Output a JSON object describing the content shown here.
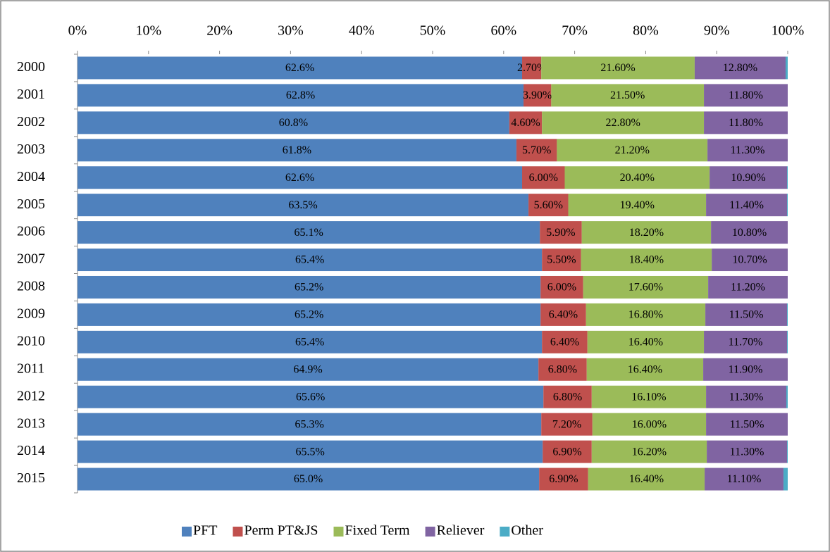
{
  "chart_data": {
    "type": "stacked-bar-horizontal",
    "categories": [
      "2000",
      "2001",
      "2002",
      "2003",
      "2004",
      "2005",
      "2006",
      "2007",
      "2008",
      "2009",
      "2010",
      "2011",
      "2012",
      "2013",
      "2014",
      "2015"
    ],
    "xlim": [
      0,
      100
    ],
    "xticks": [
      {
        "value": 0,
        "label": "0%"
      },
      {
        "value": 10,
        "label": "10%"
      },
      {
        "value": 20,
        "label": "20%"
      },
      {
        "value": 30,
        "label": "30%"
      },
      {
        "value": 40,
        "label": "40%"
      },
      {
        "value": 50,
        "label": "50%"
      },
      {
        "value": 60,
        "label": "60%"
      },
      {
        "value": 70,
        "label": "70%"
      },
      {
        "value": 80,
        "label": "80%"
      },
      {
        "value": 90,
        "label": "90%"
      },
      {
        "value": 100,
        "label": "100%"
      }
    ],
    "legend": "bottom",
    "series": [
      {
        "name": "PFT",
        "color": "#4f81bd",
        "values": [
          62.6,
          62.8,
          60.8,
          61.8,
          62.6,
          63.5,
          65.1,
          65.4,
          65.2,
          65.2,
          65.4,
          64.9,
          65.6,
          65.3,
          65.5,
          65.0
        ],
        "value_labels": [
          "62.6%",
          "62.8%",
          "60.8%",
          "61.8%",
          "62.6%",
          "63.5%",
          "65.1%",
          "65.4%",
          "65.2%",
          "65.2%",
          "65.4%",
          "64.9%",
          "65.6%",
          "65.3%",
          "65.5%",
          "65.0%"
        ]
      },
      {
        "name": "Perm PT&JS",
        "color": "#c0504d",
        "values": [
          2.7,
          3.9,
          4.6,
          5.7,
          6.0,
          5.6,
          5.9,
          5.5,
          6.0,
          6.4,
          6.4,
          6.8,
          6.8,
          7.2,
          6.9,
          6.9
        ],
        "value_labels": [
          "2.70%",
          "3.90%",
          "4.60%",
          "5.70%",
          "6.00%",
          "5.60%",
          "5.90%",
          "5.50%",
          "6.00%",
          "6.40%",
          "6.40%",
          "6.80%",
          "6.80%",
          "7.20%",
          "6.90%",
          "6.90%"
        ]
      },
      {
        "name": "Fixed Term",
        "color": "#9bbb59",
        "values": [
          21.6,
          21.5,
          22.8,
          21.2,
          20.4,
          19.4,
          18.2,
          18.4,
          17.6,
          16.8,
          16.4,
          16.4,
          16.1,
          16.0,
          16.2,
          16.4
        ],
        "value_labels": [
          "21.60%",
          "21.50%",
          "22.80%",
          "21.20%",
          "20.40%",
          "19.40%",
          "18.20%",
          "18.40%",
          "17.60%",
          "16.80%",
          "16.40%",
          "16.40%",
          "16.10%",
          "16.00%",
          "16.20%",
          "16.40%"
        ]
      },
      {
        "name": "Reliever",
        "color": "#8064a2",
        "values": [
          12.8,
          11.8,
          11.8,
          11.3,
          10.9,
          11.4,
          10.8,
          10.7,
          11.2,
          11.5,
          11.7,
          11.9,
          11.3,
          11.5,
          11.3,
          11.1
        ],
        "value_labels": [
          "12.80%",
          "11.80%",
          "11.80%",
          "11.30%",
          "10.90%",
          "11.40%",
          "10.80%",
          "10.70%",
          "11.20%",
          "11.50%",
          "11.70%",
          "11.90%",
          "11.30%",
          "11.50%",
          "11.30%",
          "11.10%"
        ]
      },
      {
        "name": "Other",
        "color": "#4bacc6",
        "values": [
          0.3,
          0,
          0,
          0,
          0.1,
          0.1,
          0,
          0,
          0,
          0.1,
          0.1,
          0,
          0.2,
          0,
          0.1,
          0.6
        ]
      }
    ]
  }
}
